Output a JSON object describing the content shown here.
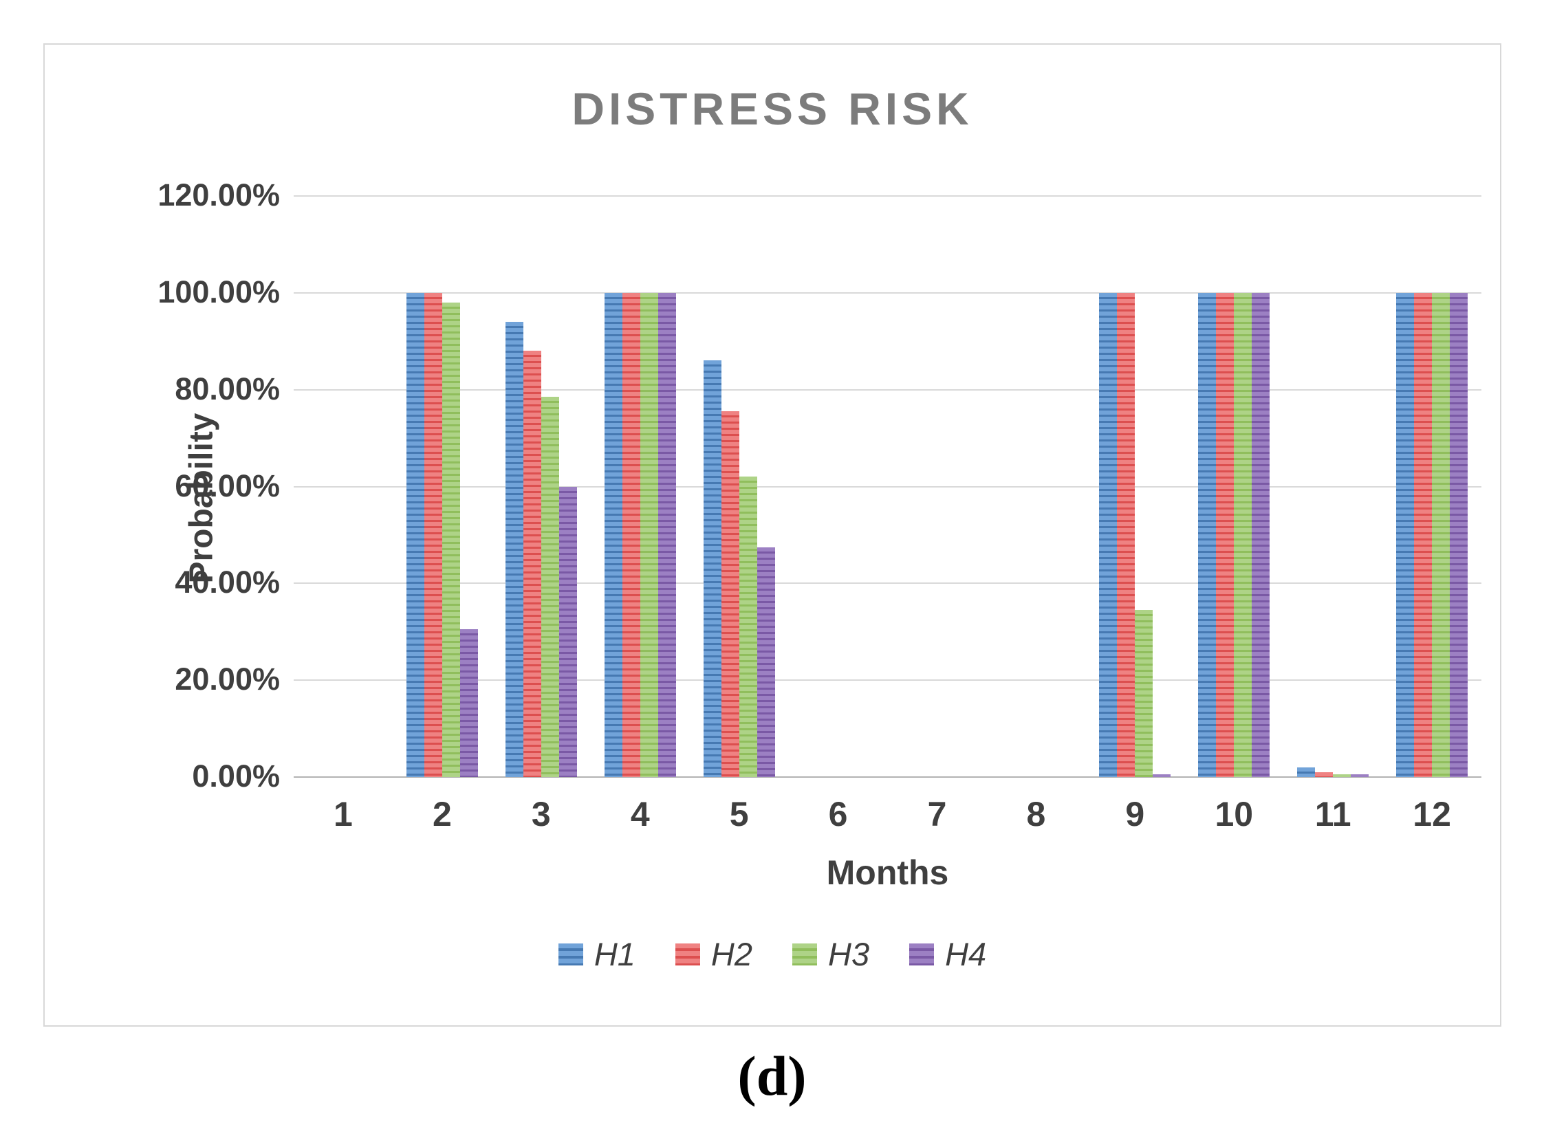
{
  "figure": {
    "caption": "(d)"
  },
  "chart_data": {
    "type": "bar",
    "title": "DISTRESS RISK",
    "xlabel": "Months",
    "ylabel": "Probability",
    "categories": [
      "1",
      "2",
      "3",
      "4",
      "5",
      "6",
      "7",
      "8",
      "9",
      "10",
      "11",
      "12"
    ],
    "series": [
      {
        "name": "H1",
        "color": "#4679b2",
        "values": [
          0,
          100,
          94,
          100,
          86,
          0,
          0,
          0,
          100,
          100,
          2,
          100
        ]
      },
      {
        "name": "H2",
        "color": "#dc4f4f",
        "values": [
          0,
          100,
          88,
          100,
          75.5,
          0,
          0,
          0,
          100,
          100,
          1,
          100
        ]
      },
      {
        "name": "H3",
        "color": "#90be5c",
        "values": [
          0,
          98,
          78.5,
          100,
          62,
          0,
          0,
          0,
          34.5,
          100,
          0.5,
          100
        ]
      },
      {
        "name": "H4",
        "color": "#7a59a5",
        "values": [
          0,
          30.5,
          60,
          100,
          47.5,
          0,
          0,
          0,
          0.5,
          100,
          0.5,
          100
        ]
      }
    ],
    "ylim": [
      0,
      120
    ],
    "y_ticks": [
      "120.00%",
      "100.00%",
      "80.00%",
      "60.00%",
      "40.00%",
      "20.00%",
      "0.00%"
    ],
    "grid": true,
    "legend_position": "bottom",
    "colors": {
      "title_text": "#7c7c7c",
      "axis_text": "#3f3f3f",
      "gridline": "#d9d9d9",
      "axis_line": "#b3b3b3"
    }
  }
}
